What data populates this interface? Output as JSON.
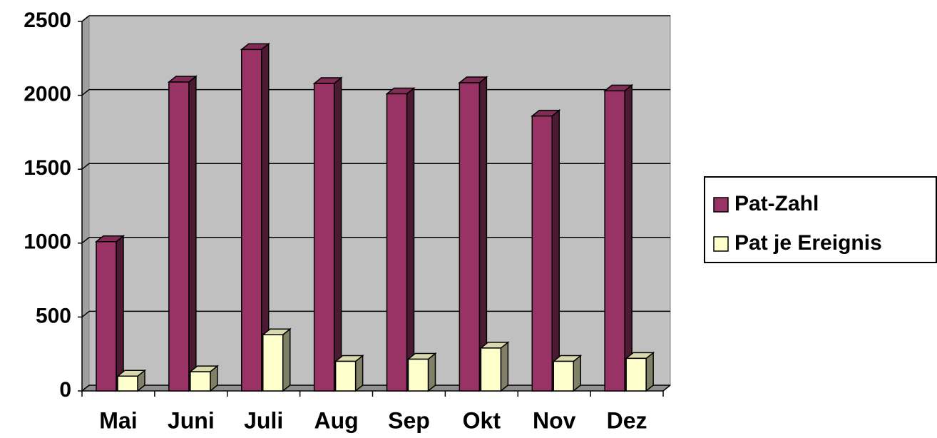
{
  "chart_data": {
    "type": "bar3d",
    "categories": [
      "Mai",
      "Juni",
      "Juli",
      "Aug",
      "Sep",
      "Okt",
      "Nov",
      "Dez"
    ],
    "series": [
      {
        "name": "Pat-Zahl",
        "color": "#993366",
        "values": [
          1010,
          2090,
          2310,
          2080,
          2010,
          2085,
          1860,
          2030
        ]
      },
      {
        "name": "Pat je Ereignis",
        "color": "#ffffcc",
        "values": [
          100,
          130,
          380,
          200,
          215,
          290,
          200,
          220
        ]
      }
    ],
    "ylim": [
      0,
      2500
    ],
    "yticks": [
      0,
      500,
      1000,
      1500,
      2000,
      2500
    ],
    "grid": true,
    "legend": "right"
  }
}
